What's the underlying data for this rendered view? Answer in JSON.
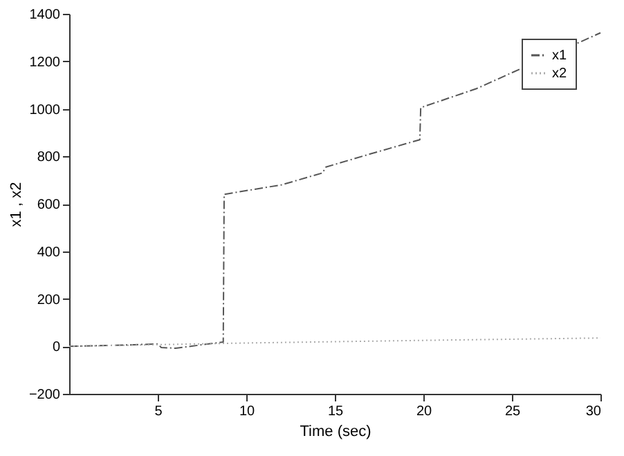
{
  "chart_data": {
    "type": "line",
    "xlabel": "Time (sec)",
    "ylabel": "x1 , x2",
    "xlim": [
      0,
      30
    ],
    "xticks": [
      5,
      10,
      15,
      20,
      25,
      30
    ],
    "ylim": [
      -200,
      1400
    ],
    "yticks": [
      -200,
      0,
      200,
      400,
      600,
      800,
      1000,
      1200,
      1400
    ],
    "grid": false,
    "legend": "top right",
    "series": [
      {
        "name": "x1",
        "color": "#555555",
        "line_style": "dashed",
        "x": [
          0,
          3,
          5,
          5.2,
          6,
          8.7,
          8.75,
          12,
          14.3,
          14.5,
          17,
          19.8,
          19.85,
          23,
          30
        ],
        "values": [
          0,
          5,
          10,
          -5,
          -8,
          18,
          640,
          680,
          730,
          755,
          810,
          870,
          1005,
          1085,
          1320
        ]
      },
      {
        "name": "x2",
        "color": "#aaaaaa",
        "line_style": "dotted",
        "x": [
          0,
          10,
          20,
          30
        ],
        "values": [
          0,
          14,
          25,
          35
        ]
      }
    ]
  }
}
